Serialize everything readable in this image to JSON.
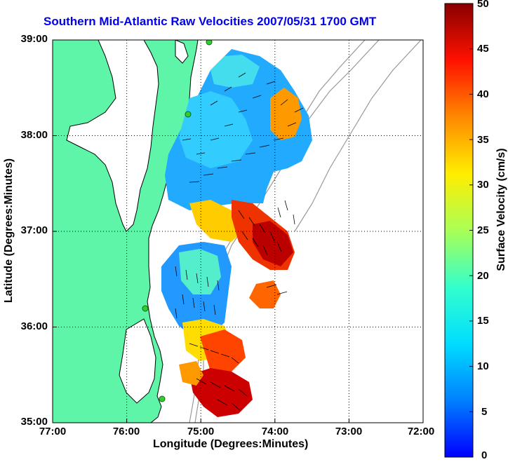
{
  "title": "Southern Mid-Atlantic Raw Velocities 2007/05/31 1700 GMT",
  "axes": {
    "xlabel": "Longitude (Degrees:Minutes)",
    "ylabel": "Latitude (Degrees:Minutes)",
    "x_ticks": [
      "77:00",
      "76:00",
      "75:00",
      "74:00",
      "73:00",
      "72:00"
    ],
    "y_ticks": [
      "39:00",
      "38:00",
      "37:00",
      "36:00",
      "35:00"
    ],
    "x_range_deg_west": [
      77,
      72
    ],
    "y_range_deg_north": [
      35,
      39
    ],
    "grid": "dotted"
  },
  "colorbar": {
    "label": "Surface Velocity (cm/s)",
    "ticks": [
      "50",
      "45",
      "40",
      "35",
      "30",
      "25",
      "20",
      "15",
      "10",
      "5",
      "0"
    ],
    "range": [
      0,
      50
    ],
    "colormap": "jet"
  },
  "colors": {
    "land": "#5ef5a8",
    "coast_line": "#000000",
    "bathymetry": "#999999",
    "stations": "#33cc33",
    "title": "#0000ee"
  },
  "icons": [
    "station-marker-icon"
  ]
}
